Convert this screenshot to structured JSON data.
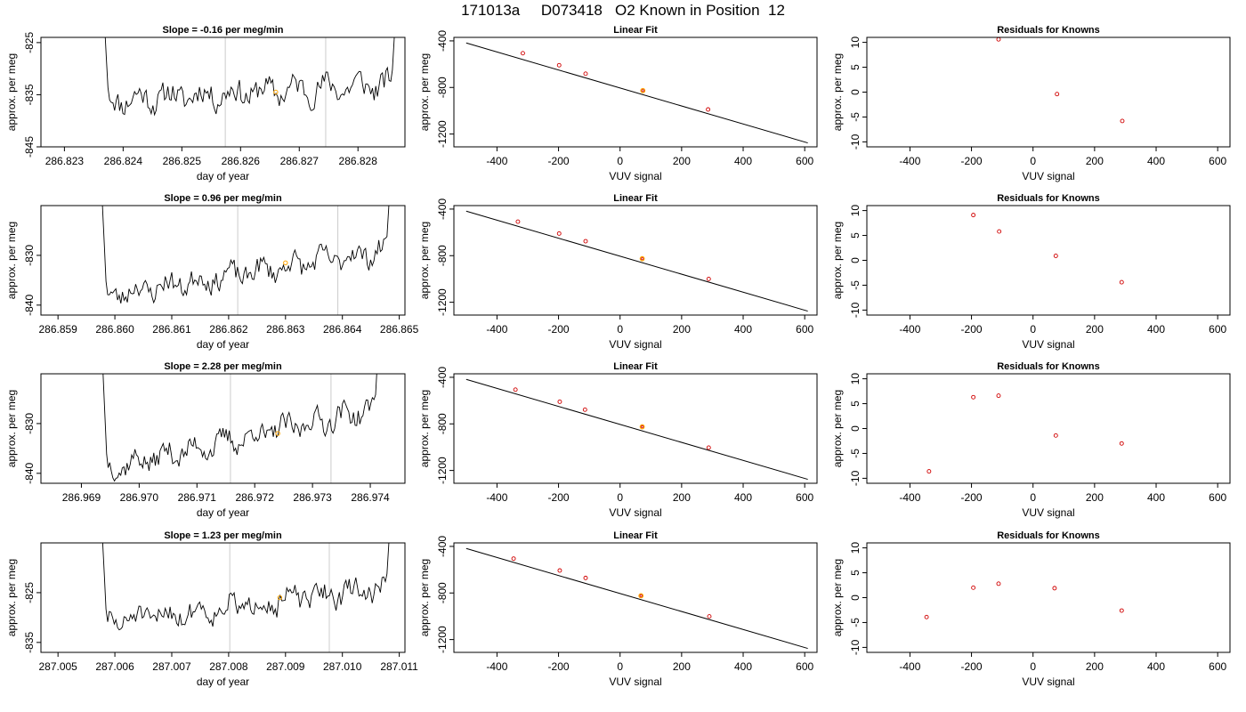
{
  "page": {
    "title": "171013a     D073418   O2 Known in Position  12"
  },
  "chart_data": [
    {
      "type": "line",
      "title": "Slope =  -0.16  per meg/min",
      "xlabel": "day of year",
      "ylabel": "approx. per meg",
      "xlim": [
        286.8226,
        286.8288
      ],
      "ylim": [
        -845,
        -824
      ],
      "xticks": [
        "286.823",
        "286.824",
        "286.825",
        "286.826",
        "286.827",
        "286.828"
      ],
      "yticks": [
        "-825",
        "-835",
        "-845"
      ],
      "vlines": [
        286.82574,
        286.82745
      ],
      "signal": {
        "x_start": 286.8236,
        "x_end": 286.8287,
        "baseline": -836,
        "drift": 3,
        "noise": 2.2,
        "seed": 11
      },
      "orange_point": {
        "x": 286.8266,
        "y": -834.5
      }
    },
    {
      "type": "line",
      "title": "Slope =  0.96  per meg/min",
      "xlabel": "day of year",
      "ylabel": "approx. per meg",
      "xlim": [
        286.8587,
        286.8651
      ],
      "ylim": [
        -842,
        -820
      ],
      "xticks": [
        "286.859",
        "286.860",
        "286.861",
        "286.862",
        "286.863",
        "286.864",
        "286.865"
      ],
      "yticks": [
        "-830",
        "-840"
      ],
      "vlines": [
        286.86216,
        286.86392
      ],
      "signal": {
        "x_start": 286.8597,
        "x_end": 286.8649,
        "baseline": -838,
        "drift": 9,
        "noise": 2.0,
        "seed": 23
      },
      "orange_point": {
        "x": 286.863,
        "y": -831.5
      }
    },
    {
      "type": "line",
      "title": "Slope =  2.28  per meg/min",
      "xlabel": "day of year",
      "ylabel": "approx. per meg",
      "xlim": [
        286.9683,
        286.9746
      ],
      "ylim": [
        -842,
        -820
      ],
      "xticks": [
        "286.969",
        "286.970",
        "286.971",
        "286.972",
        "286.973",
        "286.974"
      ],
      "yticks": [
        "-830",
        "-840"
      ],
      "vlines": [
        286.97158,
        286.97332
      ],
      "signal": {
        "x_start": 286.9693,
        "x_end": 286.9742,
        "baseline": -839,
        "drift": 12,
        "noise": 2.0,
        "seed": 37
      },
      "orange_point": {
        "x": 286.9724,
        "y": -832
      }
    },
    {
      "type": "line",
      "title": "Slope =  1.23  per meg/min",
      "xlabel": "day of year",
      "ylabel": "approx. per meg",
      "xlim": [
        287.0047,
        287.0111
      ],
      "ylim": [
        -837,
        -815
      ],
      "xticks": [
        "287.005",
        "287.006",
        "287.007",
        "287.008",
        "287.009",
        "287.010",
        "287.011"
      ],
      "yticks": [
        "-825",
        "-835"
      ],
      "vlines": [
        287.00802,
        287.00977
      ],
      "signal": {
        "x_start": 287.0057,
        "x_end": 287.0109,
        "baseline": -831,
        "drift": 7,
        "noise": 2.0,
        "seed": 51
      },
      "orange_point": {
        "x": 287.0089,
        "y": -826
      }
    },
    {
      "type": "scatter",
      "title": "Linear Fit",
      "xlabel": "VUV signal",
      "ylabel": "approx. per meg",
      "xlim": [
        -540,
        640
      ],
      "ylim": [
        -1310,
        -370
      ],
      "xticks": [
        -400,
        -200,
        0,
        200,
        400,
        600
      ],
      "yticks": [
        -400,
        -800,
        -1200
      ],
      "fit_line": {
        "x": [
          -500,
          610
        ],
        "y": [
          -418,
          -1276
        ]
      },
      "points": [
        [
          -316,
          -506
        ],
        [
          -198,
          -609
        ],
        [
          -112,
          -682
        ],
        [
          286,
          -989
        ]
      ],
      "highlight": [
        74,
        -827
      ]
    },
    {
      "type": "scatter",
      "title": "Linear Fit",
      "xlabel": "VUV signal",
      "ylabel": "approx. per meg",
      "xlim": [
        -540,
        640
      ],
      "ylim": [
        -1310,
        -370
      ],
      "xticks": [
        -400,
        -200,
        0,
        200,
        400,
        600
      ],
      "yticks": [
        -400,
        -800,
        -1200
      ],
      "fit_line": {
        "x": [
          -500,
          610
        ],
        "y": [
          -418,
          -1276
        ]
      },
      "points": [
        [
          -332,
          -508
        ],
        [
          -198,
          -610
        ],
        [
          -112,
          -676
        ],
        [
          288,
          -1000
        ]
      ],
      "highlight": [
        72,
        -826
      ]
    },
    {
      "type": "scatter",
      "title": "Linear Fit",
      "xlabel": "VUV signal",
      "ylabel": "approx. per meg",
      "xlim": [
        -540,
        640
      ],
      "ylim": [
        -1310,
        -370
      ],
      "xticks": [
        -400,
        -200,
        0,
        200,
        400,
        600
      ],
      "yticks": [
        -400,
        -800,
        -1200
      ],
      "fit_line": {
        "x": [
          -500,
          610
        ],
        "y": [
          -418,
          -1276
        ]
      },
      "points": [
        [
          -340,
          -506
        ],
        [
          -196,
          -610
        ],
        [
          -114,
          -678
        ],
        [
          288,
          -1004
        ]
      ],
      "highlight": [
        72,
        -825
      ]
    },
    {
      "type": "scatter",
      "title": "Linear Fit",
      "xlabel": "VUV signal",
      "ylabel": "approx. per meg",
      "xlim": [
        -540,
        640
      ],
      "ylim": [
        -1310,
        -370
      ],
      "xticks": [
        -400,
        -200,
        0,
        200,
        400,
        600
      ],
      "yticks": [
        -400,
        -800,
        -1200
      ],
      "fit_line": {
        "x": [
          -500,
          610
        ],
        "y": [
          -418,
          -1276
        ]
      },
      "points": [
        [
          -346,
          -505
        ],
        [
          -196,
          -607
        ],
        [
          -112,
          -671
        ],
        [
          290,
          -1001
        ]
      ],
      "highlight": [
        68,
        -824
      ]
    },
    {
      "type": "scatter",
      "title": "Residuals for Knowns",
      "xlabel": "VUV signal",
      "ylabel": "approx. per meg",
      "xlim": [
        -540,
        640
      ],
      "ylim": [
        -11,
        11
      ],
      "xticks": [
        -400,
        -200,
        0,
        200,
        400,
        600
      ],
      "yticks": [
        -10,
        -5,
        0,
        5,
        10
      ],
      "points": [
        [
          -112,
          10.6
        ],
        [
          78,
          -0.4
        ],
        [
          290,
          -5.8
        ]
      ]
    },
    {
      "type": "scatter",
      "title": "Residuals for Knowns",
      "xlabel": "VUV signal",
      "ylabel": "approx. per meg",
      "xlim": [
        -540,
        640
      ],
      "ylim": [
        -11,
        11
      ],
      "xticks": [
        -400,
        -200,
        0,
        200,
        400,
        600
      ],
      "yticks": [
        -10,
        -5,
        0,
        5,
        10
      ],
      "points": [
        [
          -194,
          9.1
        ],
        [
          -110,
          5.8
        ],
        [
          74,
          0.9
        ],
        [
          288,
          -4.4
        ]
      ]
    },
    {
      "type": "scatter",
      "title": "Residuals for Knowns",
      "xlabel": "VUV signal",
      "ylabel": "approx. per meg",
      "xlim": [
        -540,
        640
      ],
      "ylim": [
        -11,
        11
      ],
      "xticks": [
        -400,
        -200,
        0,
        200,
        400,
        600
      ],
      "yticks": [
        -10,
        -5,
        0,
        5,
        10
      ],
      "points": [
        [
          -338,
          -8.6
        ],
        [
          -194,
          6.3
        ],
        [
          -112,
          6.6
        ],
        [
          74,
          -1.4
        ],
        [
          288,
          -3.0
        ]
      ]
    },
    {
      "type": "scatter",
      "title": "Residuals for Knowns",
      "xlabel": "VUV signal",
      "ylabel": "approx. per meg",
      "xlim": [
        -540,
        640
      ],
      "ylim": [
        -11,
        11
      ],
      "xticks": [
        -400,
        -200,
        0,
        200,
        400,
        600
      ],
      "yticks": [
        -10,
        -5,
        0,
        5,
        10
      ],
      "points": [
        [
          -346,
          -3.9
        ],
        [
          -194,
          2.0
        ],
        [
          -112,
          2.8
        ],
        [
          70,
          1.9
        ],
        [
          288,
          -2.6
        ]
      ]
    }
  ]
}
